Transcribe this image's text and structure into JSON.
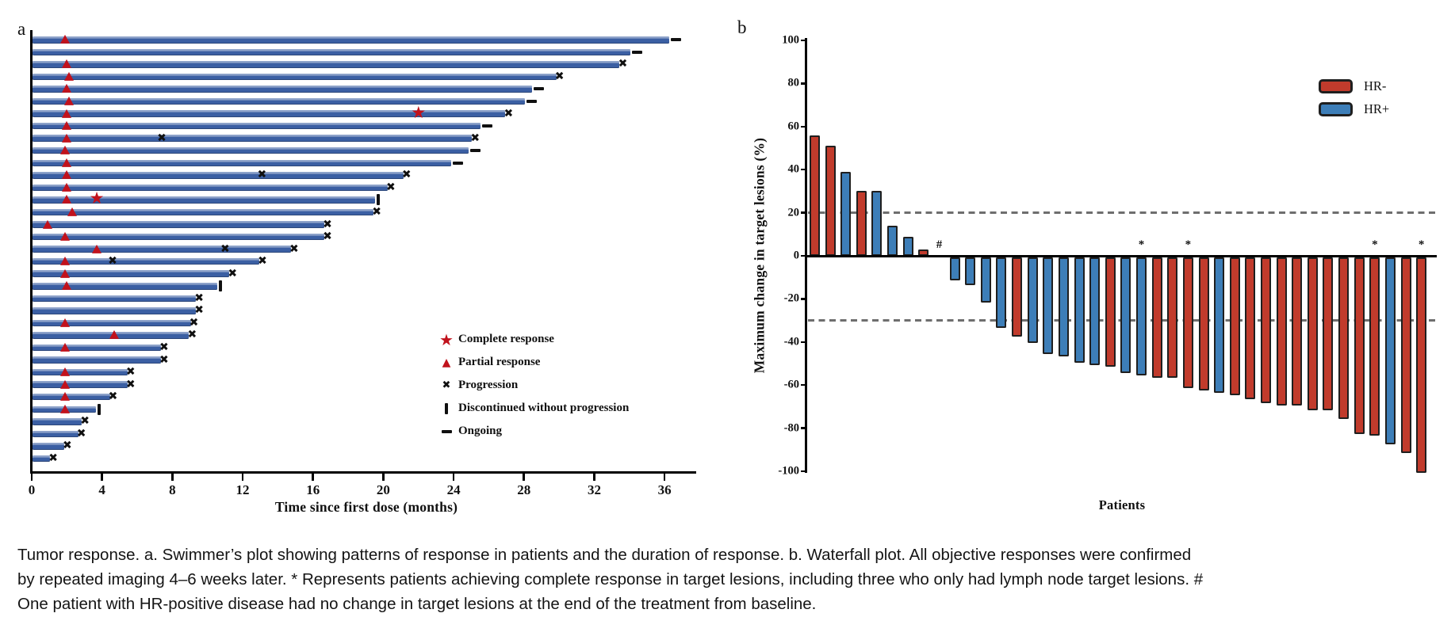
{
  "figure": {
    "panel_a_label": "a",
    "panel_b_label": "b",
    "caption": "Tumor response. a. Swimmer’s plot showing patterns of response in patients and the duration of response. b. Waterfall plot. All objective responses were confirmed by repeated imaging 4–6 weeks later. * Represents patients achieving complete response in target lesions, including three who only had lymph node target lesions. # One patient with HR-positive disease had no change in target lesions at the end of the treatment from baseline."
  },
  "colors": {
    "swimmer_bar_blue": "#3b5fa3",
    "marker_red": "#c1121c",
    "hr_negative_red": "#c13b2c",
    "hr_positive_blue": "#3d7eb8",
    "reference_line_gray": "#6e6e6e",
    "axis_black": "#000000"
  },
  "chart_data": [
    {
      "type": "swimmer",
      "xlabel": "Time since first dose (months)",
      "x_ticks": [
        0,
        4,
        8,
        12,
        16,
        20,
        24,
        28,
        32,
        36
      ],
      "xlim": [
        0,
        37.8
      ],
      "grid": false,
      "legend_position": "lower-right-inside",
      "legend": [
        {
          "symbol": "complete-response-star",
          "label": "Complete response"
        },
        {
          "symbol": "partial-response-triangle",
          "label": "Partial response"
        },
        {
          "symbol": "progression-cross",
          "label": "Progression"
        },
        {
          "symbol": "discontinued-bar",
          "label": "Discontinued without progression"
        },
        {
          "symbol": "ongoing-dash",
          "label": "Ongoing"
        }
      ],
      "patients": [
        {
          "duration_months": 36.2,
          "partial_response_at": 1.9,
          "end_marker": "ongoing"
        },
        {
          "duration_months": 34.0,
          "end_marker": "ongoing"
        },
        {
          "duration_months": 33.4,
          "partial_response_at": 2.0,
          "end_marker": "progression"
        },
        {
          "duration_months": 29.8,
          "partial_response_at": 2.1,
          "end_marker": "progression"
        },
        {
          "duration_months": 28.4,
          "partial_response_at": 2.0,
          "end_marker": "ongoing"
        },
        {
          "duration_months": 28.0,
          "partial_response_at": 2.1,
          "end_marker": "ongoing"
        },
        {
          "duration_months": 26.9,
          "partial_response_at": 2.0,
          "complete_response_at": 22.0,
          "end_marker": "progression"
        },
        {
          "duration_months": 25.5,
          "partial_response_at": 2.0,
          "end_marker": "ongoing"
        },
        {
          "duration_months": 25.0,
          "partial_response_at": 2.0,
          "progression_at": [
            7.4
          ],
          "end_marker": "progression"
        },
        {
          "duration_months": 24.8,
          "partial_response_at": 1.9,
          "end_marker": "ongoing"
        },
        {
          "duration_months": 23.8,
          "partial_response_at": 2.0,
          "end_marker": "ongoing"
        },
        {
          "duration_months": 21.1,
          "partial_response_at": 2.0,
          "progression_at": [
            13.1
          ],
          "end_marker": "progression"
        },
        {
          "duration_months": 20.2,
          "partial_response_at": 2.0,
          "end_marker": "progression"
        },
        {
          "duration_months": 19.5,
          "partial_response_at": 2.0,
          "complete_response_at": 3.7,
          "end_marker": "discontinued"
        },
        {
          "duration_months": 19.4,
          "partial_response_at": 2.3,
          "end_marker": "progression"
        },
        {
          "duration_months": 16.6,
          "partial_response_at": 0.9,
          "end_marker": "progression"
        },
        {
          "duration_months": 16.6,
          "partial_response_at": 1.9,
          "end_marker": "progression"
        },
        {
          "duration_months": 14.7,
          "partial_response_at": 3.7,
          "progression_at": [
            11.0
          ],
          "end_marker": "progression"
        },
        {
          "duration_months": 12.9,
          "partial_response_at": 1.9,
          "progression_at": [
            4.6
          ],
          "end_marker": "progression"
        },
        {
          "duration_months": 11.2,
          "partial_response_at": 1.9,
          "end_marker": "progression"
        },
        {
          "duration_months": 10.5,
          "partial_response_at": 2.0,
          "end_marker": "discontinued"
        },
        {
          "duration_months": 9.3,
          "end_marker": "progression"
        },
        {
          "duration_months": 9.3,
          "end_marker": "progression"
        },
        {
          "duration_months": 9.0,
          "partial_response_at": 1.9,
          "end_marker": "progression"
        },
        {
          "duration_months": 8.9,
          "partial_response_at": 4.7,
          "end_marker": "progression"
        },
        {
          "duration_months": 7.3,
          "partial_response_at": 1.9,
          "end_marker": "progression"
        },
        {
          "duration_months": 7.3,
          "end_marker": "progression"
        },
        {
          "duration_months": 5.4,
          "partial_response_at": 1.9,
          "end_marker": "progression"
        },
        {
          "duration_months": 5.4,
          "partial_response_at": 1.9,
          "end_marker": "progression"
        },
        {
          "duration_months": 4.4,
          "partial_response_at": 1.9,
          "end_marker": "progression"
        },
        {
          "duration_months": 3.6,
          "partial_response_at": 1.9,
          "end_marker": "discontinued"
        },
        {
          "duration_months": 2.8,
          "end_marker": "progression"
        },
        {
          "duration_months": 2.6,
          "end_marker": "progression"
        },
        {
          "duration_months": 1.8,
          "end_marker": "progression"
        },
        {
          "duration_months": 1.0,
          "end_marker": "progression"
        }
      ]
    },
    {
      "type": "waterfall",
      "xlabel": "Patients",
      "ylabel": "Maximum change in target lesions (%)",
      "ylim": [
        -100,
        100
      ],
      "y_ticks": [
        100,
        80,
        60,
        40,
        20,
        0,
        -20,
        -40,
        -60,
        -80,
        -100
      ],
      "reference_lines": [
        20,
        -30
      ],
      "grid": false,
      "legend_position": "upper-right-inside",
      "legend": [
        {
          "label": "HR-",
          "color": "#c13b2c"
        },
        {
          "label": "HR+",
          "color": "#3d7eb8"
        }
      ],
      "bars": [
        {
          "value": 56,
          "group": "HR-"
        },
        {
          "value": 51,
          "group": "HR-"
        },
        {
          "value": 39,
          "group": "HR+"
        },
        {
          "value": 30,
          "group": "HR-"
        },
        {
          "value": 30,
          "group": "HR+"
        },
        {
          "value": 14,
          "group": "HR+"
        },
        {
          "value": 9,
          "group": "HR+"
        },
        {
          "value": 3,
          "group": "HR-"
        },
        {
          "value": 0,
          "group": "HR+",
          "annotation": "#"
        },
        {
          "value": -11,
          "group": "HR+"
        },
        {
          "value": -13,
          "group": "HR+"
        },
        {
          "value": -21,
          "group": "HR+"
        },
        {
          "value": -33,
          "group": "HR+"
        },
        {
          "value": -37,
          "group": "HR-"
        },
        {
          "value": -40,
          "group": "HR+"
        },
        {
          "value": -45,
          "group": "HR+"
        },
        {
          "value": -46,
          "group": "HR+"
        },
        {
          "value": -49,
          "group": "HR+"
        },
        {
          "value": -50,
          "group": "HR+"
        },
        {
          "value": -51,
          "group": "HR-"
        },
        {
          "value": -54,
          "group": "HR+"
        },
        {
          "value": -55,
          "group": "HR+",
          "annotation": "*"
        },
        {
          "value": -56,
          "group": "HR-"
        },
        {
          "value": -56,
          "group": "HR-"
        },
        {
          "value": -61,
          "group": "HR-",
          "annotation": "*"
        },
        {
          "value": -62,
          "group": "HR-"
        },
        {
          "value": -63,
          "group": "HR+"
        },
        {
          "value": -64,
          "group": "HR-"
        },
        {
          "value": -66,
          "group": "HR-"
        },
        {
          "value": -68,
          "group": "HR-"
        },
        {
          "value": -69,
          "group": "HR-"
        },
        {
          "value": -69,
          "group": "HR-"
        },
        {
          "value": -71,
          "group": "HR-"
        },
        {
          "value": -71,
          "group": "HR-"
        },
        {
          "value": -75,
          "group": "HR-"
        },
        {
          "value": -82,
          "group": "HR-"
        },
        {
          "value": -83,
          "group": "HR-",
          "annotation": "*"
        },
        {
          "value": -87,
          "group": "HR+"
        },
        {
          "value": -91,
          "group": "HR-"
        },
        {
          "value": -100,
          "group": "HR-",
          "annotation": "*"
        }
      ]
    }
  ]
}
